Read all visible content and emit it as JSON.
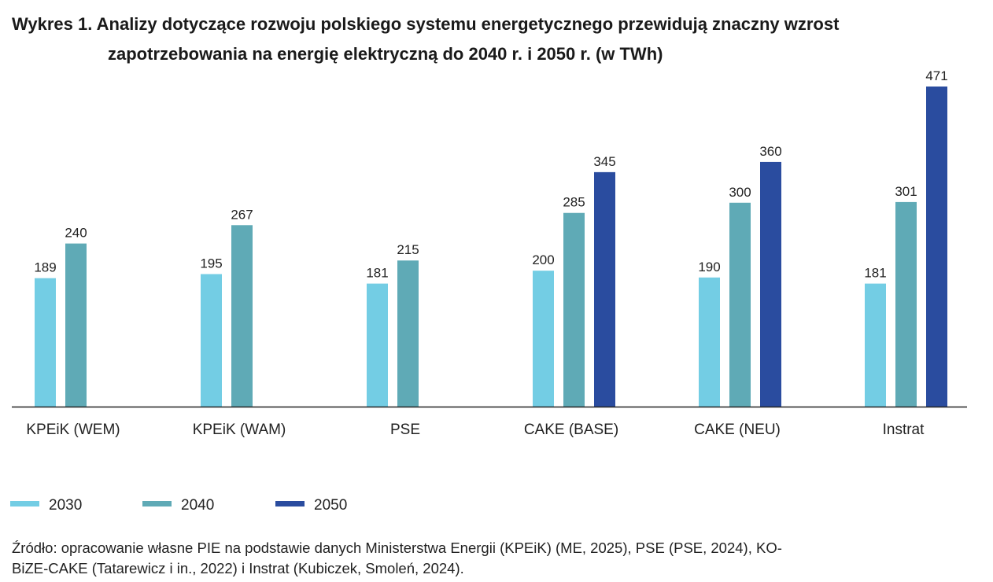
{
  "title": {
    "line1": "Wykres 1. Analizy dotyczące rozwoju polskiego systemu energetycznego przewidują znaczny wzrost",
    "line2": "zapotrzebowania na energię elektryczną do 2040 r. i 2050 r. (w TWh)"
  },
  "source": {
    "line1": "Źródło: opracowanie własne PIE na podstawie danych Ministerstwa Energii (KPEiK) (ME, 2025), PSE (PSE, 2024), KO-",
    "line2": "BiZE-CAKE (Tatarewicz i in., 2022) i Instrat (Kubiczek, Smoleń, 2024)."
  },
  "chart_data": {
    "type": "bar",
    "title": "Wykres 1. Analizy dotyczące rozwoju polskiego systemu energetycznego przewidują znaczny wzrost zapotrzebowania na energię elektryczną do 2040 r. i 2050 r. (w TWh)",
    "categories": [
      "KPEiK (WEM)",
      "KPEiK (WAM)",
      "PSE",
      "CAKE (BASE)",
      "CAKE (NEU)",
      "Instrat"
    ],
    "series": [
      {
        "name": "2030",
        "color": "#73cde4",
        "values": [
          189,
          195,
          181,
          200,
          190,
          181
        ]
      },
      {
        "name": "2040",
        "color": "#5faab6",
        "values": [
          240,
          267,
          215,
          285,
          300,
          301
        ]
      },
      {
        "name": "2050",
        "color": "#2a4c9f",
        "values": [
          null,
          null,
          null,
          345,
          360,
          471
        ]
      }
    ],
    "ylim": [
      0,
      471
    ],
    "grid": false,
    "legend": "bottom-left",
    "data_labels": true
  }
}
